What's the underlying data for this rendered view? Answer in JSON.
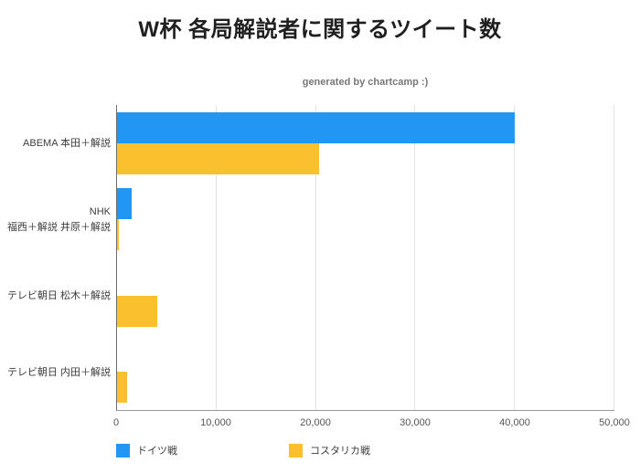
{
  "title": "W杯 各局解説者に関するツイート数",
  "subtitle": "generated by chartcamp :)",
  "chart_data": {
    "type": "bar",
    "orientation": "horizontal",
    "title": "W杯 各局解説者に関するツイート数",
    "categories": [
      "ABEMA 本田＋解説",
      "NHK\n福西＋解説 井原＋解説",
      "テレビ朝日 松木＋解説",
      "テレビ朝日 内田＋解説"
    ],
    "series": [
      {
        "name": "ドイツ戦",
        "color": "#2196F3",
        "values": [
          40000,
          1500,
          0,
          0
        ]
      },
      {
        "name": "コスタリカ戦",
        "color": "#FBC02D",
        "values": [
          20300,
          200,
          4000,
          1000
        ]
      }
    ],
    "xlim": [
      0,
      50000
    ],
    "x_ticks": [
      0,
      10000,
      20000,
      30000,
      40000,
      50000
    ],
    "x_tick_labels": [
      "0",
      "10,000",
      "20,000",
      "30,000",
      "40,000",
      "50,000"
    ],
    "grid": true,
    "legend_position": "bottom"
  }
}
